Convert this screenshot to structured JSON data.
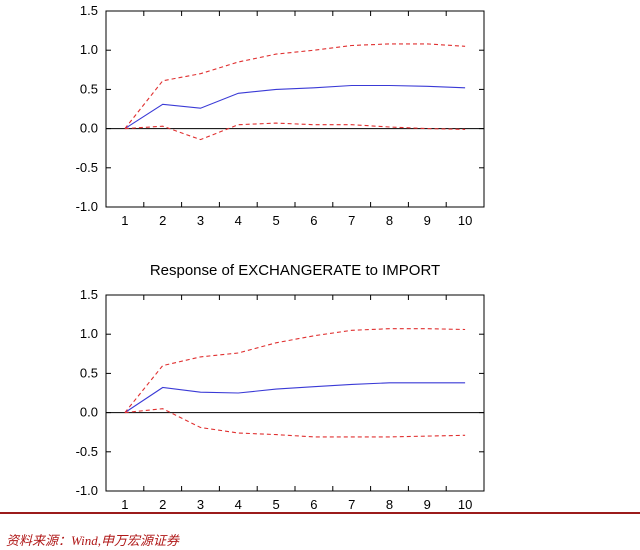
{
  "chart_data": [
    {
      "type": "line",
      "title": "",
      "xlabel": "",
      "ylabel": "",
      "x": [
        1,
        2,
        3,
        4,
        5,
        6,
        7,
        8,
        9,
        10
      ],
      "ylim": [
        -1.0,
        1.5
      ],
      "yticks": [
        "1.5",
        "1.0",
        "0.5",
        "0.0",
        "-0.5",
        "-1.0"
      ],
      "xticks": [
        "1",
        "2",
        "3",
        "4",
        "5",
        "6",
        "7",
        "8",
        "9",
        "10"
      ],
      "grid": false,
      "zero_line": true,
      "series": [
        {
          "role": "response",
          "color": "#3a3ad6",
          "style": "solid",
          "values": [
            0.0,
            0.31,
            0.26,
            0.45,
            0.5,
            0.52,
            0.55,
            0.55,
            0.54,
            0.52
          ]
        },
        {
          "role": "upper-band",
          "color": "#e03030",
          "style": "dashed",
          "values": [
            0.0,
            0.61,
            0.7,
            0.85,
            0.95,
            1.0,
            1.06,
            1.08,
            1.08,
            1.05
          ]
        },
        {
          "role": "lower-band",
          "color": "#e03030",
          "style": "dashed",
          "values": [
            0.0,
            0.03,
            -0.14,
            0.05,
            0.07,
            0.05,
            0.05,
            0.02,
            0.0,
            -0.01
          ]
        }
      ]
    },
    {
      "type": "line",
      "title": "Response of EXCHANGERATE to IMPORT",
      "xlabel": "",
      "ylabel": "",
      "x": [
        1,
        2,
        3,
        4,
        5,
        6,
        7,
        8,
        9,
        10
      ],
      "ylim": [
        -1.0,
        1.5
      ],
      "yticks": [
        "1.5",
        "1.0",
        "0.5",
        "0.0",
        "-0.5",
        "-1.0"
      ],
      "xticks": [
        "1",
        "2",
        "3",
        "4",
        "5",
        "6",
        "7",
        "8",
        "9",
        "10"
      ],
      "grid": false,
      "zero_line": true,
      "series": [
        {
          "role": "response",
          "color": "#3a3ad6",
          "style": "solid",
          "values": [
            0.0,
            0.32,
            0.26,
            0.25,
            0.3,
            0.33,
            0.36,
            0.38,
            0.38,
            0.38
          ]
        },
        {
          "role": "upper-band",
          "color": "#e03030",
          "style": "dashed",
          "values": [
            0.0,
            0.6,
            0.71,
            0.76,
            0.89,
            0.98,
            1.05,
            1.07,
            1.07,
            1.06
          ]
        },
        {
          "role": "lower-band",
          "color": "#e03030",
          "style": "dashed",
          "values": [
            0.0,
            0.05,
            -0.19,
            -0.26,
            -0.28,
            -0.31,
            -0.31,
            -0.31,
            -0.3,
            -0.29
          ]
        }
      ]
    }
  ],
  "footer": {
    "source": "资料来源：Wind,申万宏源证券",
    "rule_color": "#9b1b1b",
    "text_color": "#b01818"
  }
}
